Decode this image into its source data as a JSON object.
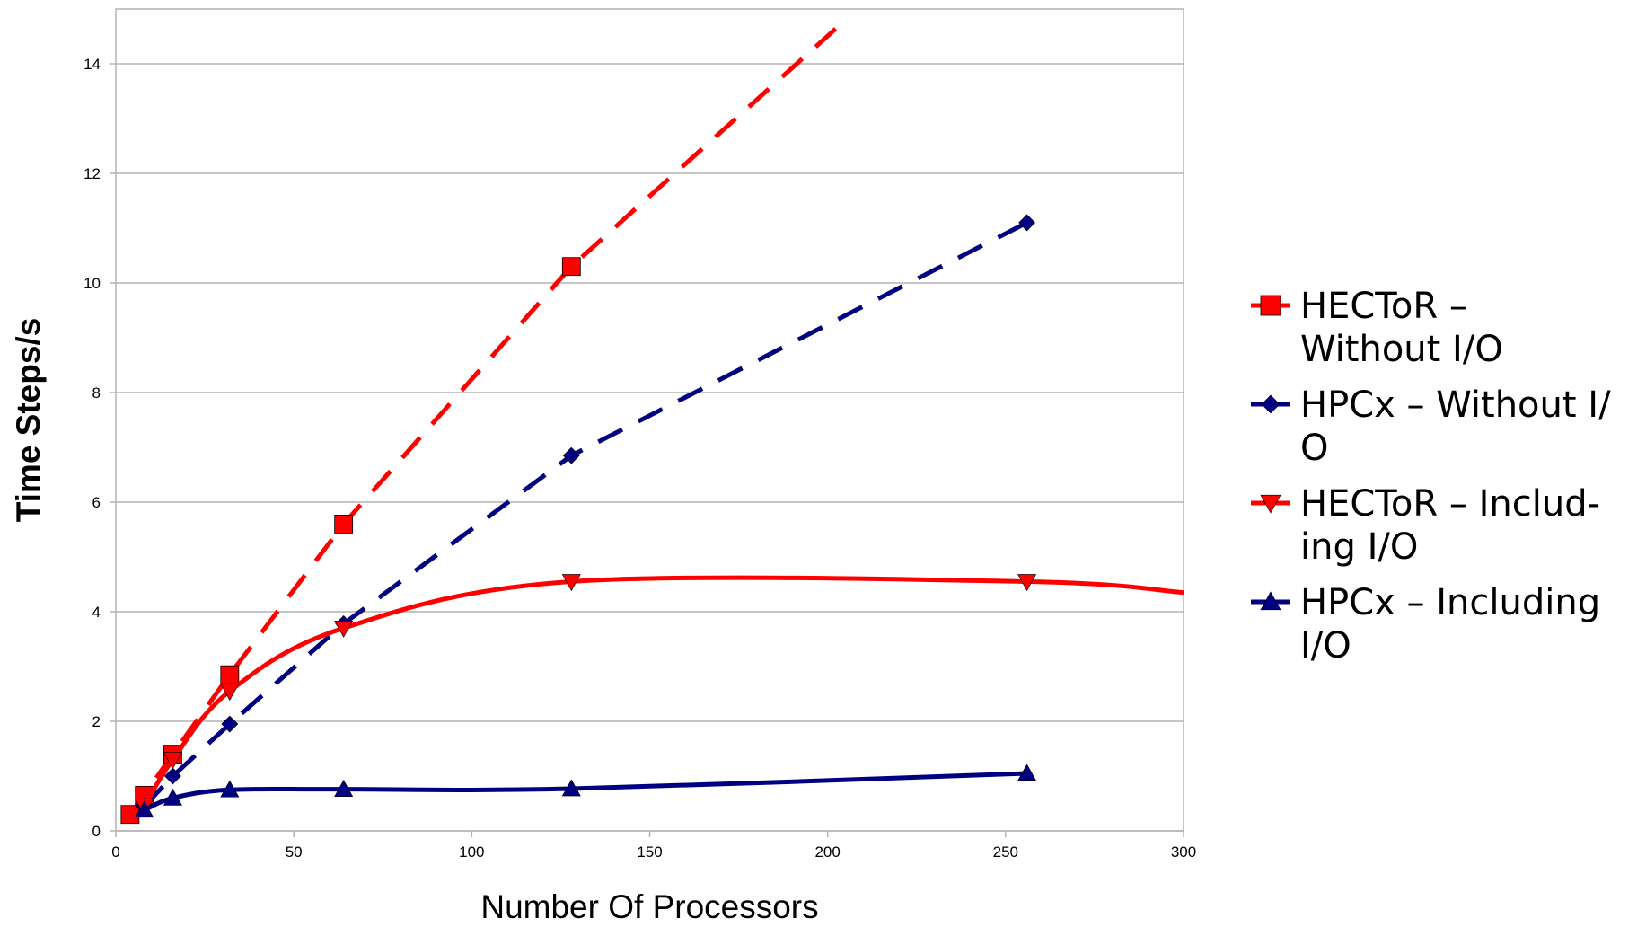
{
  "chart_data": {
    "type": "line",
    "title": "",
    "xlabel": "Number Of Processors",
    "ylabel": "Time Steps/s",
    "xlim": [
      0,
      300
    ],
    "ylim": [
      0,
      15
    ],
    "xticks": [
      0,
      50,
      100,
      150,
      200,
      250,
      300
    ],
    "yticks": [
      0,
      2,
      4,
      6,
      8,
      10,
      12,
      14
    ],
    "x_tick_labels": [
      "0",
      "50",
      "100",
      "150",
      "200",
      "250",
      "300"
    ],
    "y_tick_labels": [
      "0",
      "2",
      "4",
      "6",
      "8",
      "10",
      "12",
      "14"
    ],
    "grid": "horizontal",
    "legend_position": "right",
    "series": [
      {
        "name": "HECToR – Without I/O",
        "legend_lines": [
          "HECToR –",
          "Without I/O"
        ],
        "color": "#ff0000",
        "dashed": true,
        "marker": "square",
        "x": [
          4,
          8,
          16,
          32,
          64,
          128
        ],
        "y": [
          0.3,
          0.65,
          1.4,
          2.85,
          5.6,
          10.3
        ],
        "trend_to": [
          205,
          14.8
        ]
      },
      {
        "name": "HPCx – Without I/O",
        "legend_lines": [
          "HPCx – Without I/",
          "O"
        ],
        "color": "#000080",
        "dashed": true,
        "marker": "diamond",
        "x": [
          8,
          16,
          32,
          64,
          128,
          256
        ],
        "y": [
          0.45,
          1.0,
          1.95,
          3.78,
          6.85,
          11.1
        ]
      },
      {
        "name": "HECToR – Including I/O",
        "legend_lines": [
          "HECToR – Includ-",
          "ing I/O"
        ],
        "color": "#ff0000",
        "dashed": false,
        "marker": "triangle-down",
        "x": [
          8,
          16,
          32,
          64,
          128,
          256
        ],
        "y": [
          0.45,
          1.3,
          2.55,
          3.7,
          4.55,
          4.55
        ],
        "trend_to": [
          300,
          4.35
        ]
      },
      {
        "name": "HPCx – Including I/O",
        "legend_lines": [
          "HPCx – Including",
          "I/O"
        ],
        "color": "#000080",
        "dashed": false,
        "marker": "triangle-up",
        "x": [
          8,
          16,
          32,
          64,
          128,
          256
        ],
        "y": [
          0.38,
          0.6,
          0.75,
          0.76,
          0.77,
          1.05
        ]
      }
    ]
  }
}
